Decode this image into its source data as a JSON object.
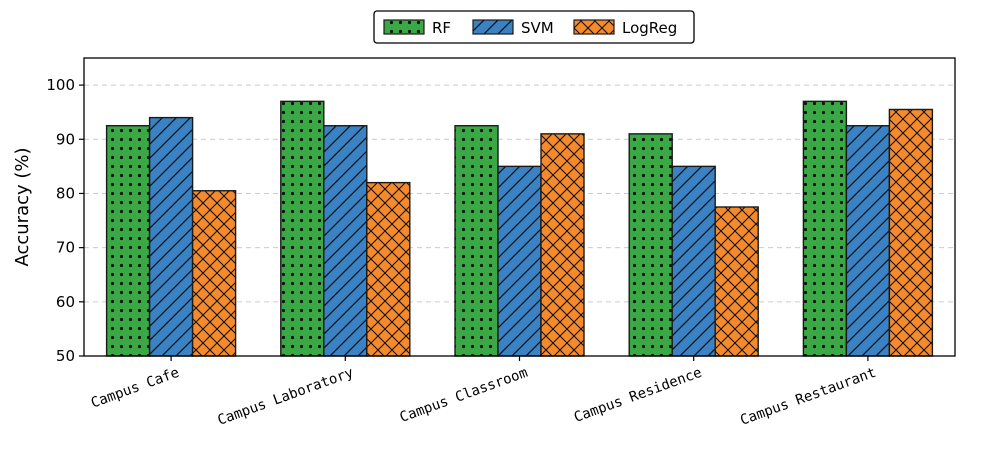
{
  "chart_data": {
    "type": "bar",
    "title": "",
    "xlabel": "",
    "ylabel": "Accuracy (%)",
    "ylim": [
      50,
      105
    ],
    "yticks": [
      50,
      60,
      70,
      80,
      90,
      100
    ],
    "grid": "horizontal dashed",
    "legend_position": "top-center",
    "categories": [
      "Campus Cafe",
      "Campus Laboratory",
      "Campus Classroom",
      "Campus Residence",
      "Campus Restaurant"
    ],
    "series": [
      {
        "name": "RF",
        "color": "#3aa845",
        "hatch": "dots",
        "values": [
          92.5,
          97.0,
          92.5,
          91.0,
          97.0
        ]
      },
      {
        "name": "SVM",
        "color": "#3a82c4",
        "hatch": "diagonal",
        "values": [
          94.0,
          92.5,
          85.0,
          85.0,
          92.5
        ]
      },
      {
        "name": "LogReg",
        "color": "#f48a2c",
        "hatch": "crosshatch",
        "values": [
          80.5,
          82.0,
          91.0,
          77.5,
          95.5
        ]
      }
    ]
  }
}
